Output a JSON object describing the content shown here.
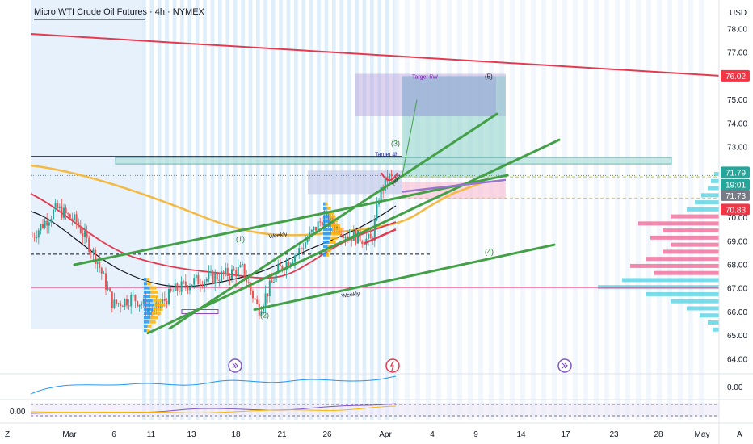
{
  "header": {
    "title": "Micro WTI Crude Oil Futures · 4h · NYMEX"
  },
  "axis": {
    "currency": "USD"
  },
  "chart_data": {
    "type": "candlestick",
    "title": "Micro WTI Crude Oil Futures · 4h · NYMEX",
    "ylim": [
      64.8,
      78.6
    ],
    "y_ticks": [
      "78.00",
      "77.00",
      "76.00",
      "75.00",
      "74.00",
      "73.00",
      "72.00",
      "71.00",
      "70.00",
      "69.00",
      "68.00",
      "67.00",
      "66.00",
      "65.00",
      "64.00"
    ],
    "x_ticks": [
      "Mar",
      "6",
      "11",
      "13",
      "18",
      "21",
      "26",
      "Apr",
      "4",
      "9",
      "14",
      "17",
      "23",
      "28",
      "May"
    ],
    "price_badges": [
      {
        "label": "76.02",
        "color": "#f23645"
      },
      {
        "label": "71.79",
        "color": "#26a69a"
      },
      {
        "label": "19:01",
        "color": "#26a69a"
      },
      {
        "label": "71.73",
        "color": "#787b86"
      },
      {
        "label": "70.83",
        "color": "#f23645"
      }
    ],
    "annotations": [
      "Target 5W",
      "(5)",
      "Target 4h",
      "(3)",
      "Highs",
      "(1)",
      "Weekly",
      "(2)",
      "(4)",
      "Weekly"
    ],
    "oscillator": {
      "labels": [
        "0.00",
        "0.00"
      ]
    },
    "corner_labels": {
      "left": "Z",
      "right": "A"
    }
  }
}
